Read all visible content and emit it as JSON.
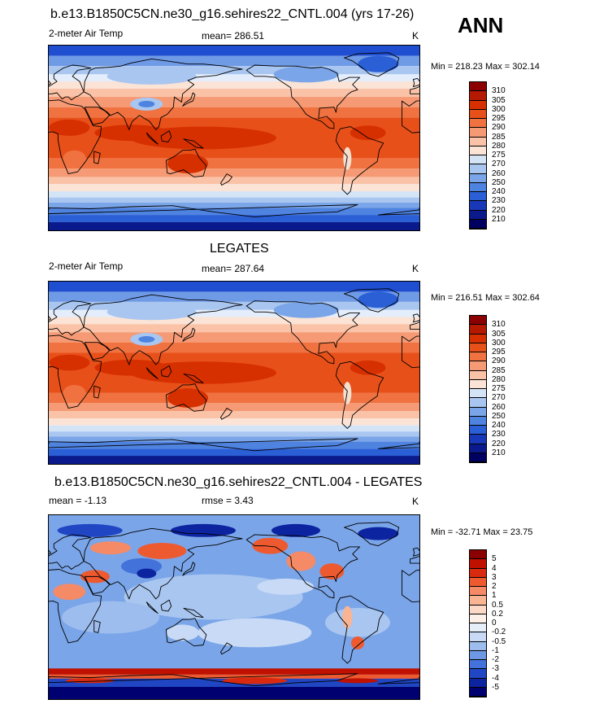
{
  "header": {
    "season": "ANN"
  },
  "panels": [
    {
      "title": "b.e13.B1850C5CN.ne30_g16.sehires22_CNTL.004 (yrs 17-26)",
      "left_label": "2-meter Air Temp",
      "center_label": "mean= 286.51",
      "units": "K",
      "minmax": "Min = 218.23 Max = 302.14",
      "palette": "temperature",
      "colorbar": {
        "labels": [
          "310",
          "305",
          "300",
          "295",
          "290",
          "285",
          "280",
          "275",
          "270",
          "260",
          "250",
          "240",
          "230",
          "220",
          "210"
        ],
        "colors": [
          "#8b0000",
          "#b51a00",
          "#d73000",
          "#e8501a",
          "#f07240",
          "#f59a74",
          "#fac3a8",
          "#fbe3d6",
          "#d4e4f7",
          "#a9c6f0",
          "#7aa5e8",
          "#4f83e0",
          "#2a5fd6",
          "#1838b8",
          "#0a1a8c",
          "#000060"
        ]
      }
    },
    {
      "title": "LEGATES",
      "left_label": "2-meter Air Temp",
      "center_label": "mean= 287.64",
      "units": "K",
      "minmax": "Min = 216.51 Max = 302.64",
      "palette": "temperature",
      "colorbar": {
        "labels": [
          "310",
          "305",
          "300",
          "295",
          "290",
          "285",
          "280",
          "275",
          "270",
          "260",
          "250",
          "240",
          "230",
          "220",
          "210"
        ],
        "colors": [
          "#8b0000",
          "#b51a00",
          "#d73000",
          "#e8501a",
          "#f07240",
          "#f59a74",
          "#fac3a8",
          "#fbe3d6",
          "#d4e4f7",
          "#a9c6f0",
          "#7aa5e8",
          "#4f83e0",
          "#2a5fd6",
          "#1838b8",
          "#0a1a8c",
          "#000060"
        ]
      }
    },
    {
      "title": "b.e13.B1850C5CN.ne30_g16.sehires22_CNTL.004 - LEGATES",
      "left_label": "mean =  -1.13",
      "center_label": "rmse =   3.43",
      "units": "K",
      "minmax": "Min = -32.71 Max =  23.75",
      "palette": "difference",
      "colorbar": {
        "labels": [
          "5",
          "4",
          "3",
          "2",
          "1",
          "0.5",
          "0.2",
          "0",
          "-0.2",
          "-0.5",
          "-1",
          "-2",
          "-3",
          "-4",
          "-5"
        ],
        "colors": [
          "#8b0000",
          "#c01000",
          "#d92a10",
          "#ee5a30",
          "#f58a66",
          "#f9b494",
          "#fcd8c6",
          "#fdf0e8",
          "#e6eefa",
          "#c8daf5",
          "#9dbdee",
          "#6e98e4",
          "#4272da",
          "#2046c4",
          "#0c24a0",
          "#000070"
        ]
      }
    }
  ]
}
